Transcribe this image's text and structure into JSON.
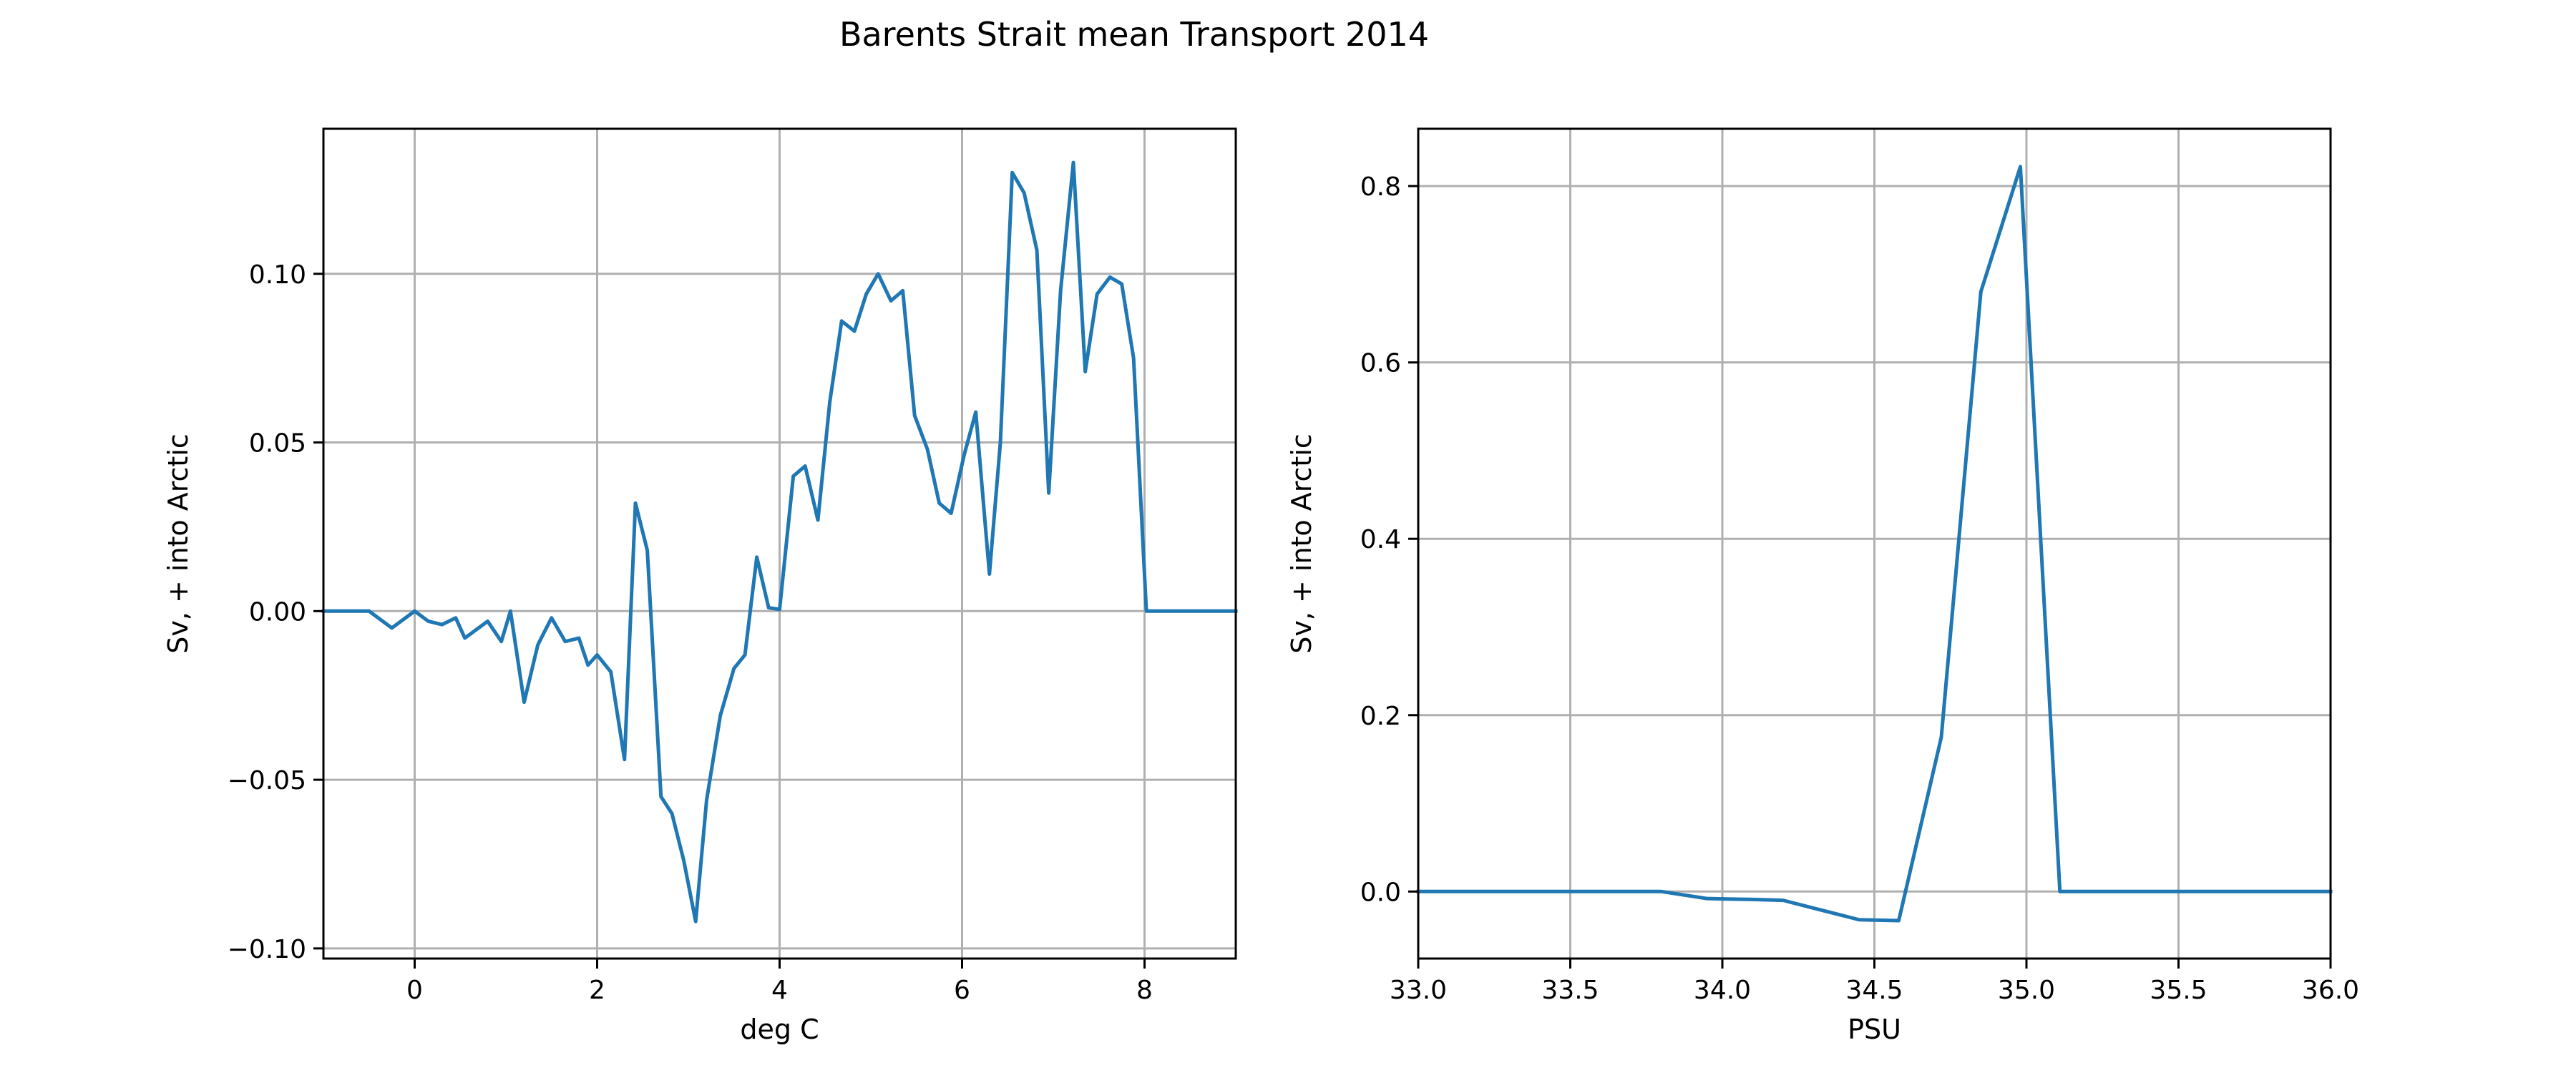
{
  "figure": {
    "title": "Barents Strait mean Transport 2014"
  },
  "colors": {
    "series": "#1f77b4",
    "grid": "#b0b0b0",
    "background": "#ffffff"
  },
  "chart_data": [
    {
      "type": "line",
      "title": "",
      "xlabel": "deg C",
      "ylabel": "Sv, + into Arctic",
      "xlim": [
        -1,
        9
      ],
      "ylim": [
        -0.103,
        0.143
      ],
      "xticks": [
        0,
        2,
        4,
        6,
        8
      ],
      "xtick_labels": [
        "0",
        "2",
        "4",
        "6",
        "8"
      ],
      "yticks": [
        -0.1,
        -0.05,
        0.0,
        0.05,
        0.1
      ],
      "ytick_labels": [
        "−0.10",
        "−0.05",
        "0.00",
        "0.05",
        "0.10"
      ],
      "grid": true,
      "series": [
        {
          "x": [
            -1.0,
            -0.8,
            -0.5,
            -0.25,
            0.0,
            0.15,
            0.3,
            0.45,
            0.55,
            0.7,
            0.8,
            0.95,
            1.05,
            1.2,
            1.35,
            1.5,
            1.65,
            1.8,
            1.9,
            2.0,
            2.15,
            2.3,
            2.42,
            2.55,
            2.7,
            2.82,
            2.95,
            3.08,
            3.2,
            3.35,
            3.5,
            3.62,
            3.75,
            3.88,
            4.0,
            4.15,
            4.28,
            4.42,
            4.55,
            4.68,
            4.82,
            4.95,
            5.08,
            5.22,
            5.35,
            5.48,
            5.62,
            5.75,
            5.88,
            6.02,
            6.15,
            6.3,
            6.42,
            6.55,
            6.68,
            6.82,
            6.95,
            7.08,
            7.22,
            7.35,
            7.48,
            7.62,
            7.75,
            7.88,
            8.02,
            8.5,
            9.0
          ],
          "y": [
            0.0,
            0.0,
            0.0,
            -0.005,
            0.0,
            -0.003,
            -0.004,
            -0.002,
            -0.008,
            -0.005,
            -0.003,
            -0.009,
            0.0,
            -0.027,
            -0.01,
            -0.002,
            -0.009,
            -0.008,
            -0.016,
            -0.013,
            -0.018,
            -0.044,
            0.032,
            0.018,
            -0.055,
            -0.06,
            -0.074,
            -0.092,
            -0.056,
            -0.031,
            -0.017,
            -0.013,
            0.016,
            0.001,
            0.0005,
            0.04,
            0.043,
            0.027,
            0.062,
            0.086,
            0.083,
            0.094,
            0.1,
            0.092,
            0.095,
            0.058,
            0.048,
            0.032,
            0.029,
            0.046,
            0.059,
            0.011,
            0.05,
            0.13,
            0.124,
            0.107,
            0.035,
            0.095,
            0.133,
            0.071,
            0.094,
            0.099,
            0.097,
            0.075,
            0.0,
            0.0,
            0.0
          ]
        }
      ]
    },
    {
      "type": "line",
      "title": "",
      "xlabel": "PSU",
      "ylabel": "Sv, + into Arctic",
      "xlim": [
        33.0,
        36.0
      ],
      "ylim": [
        -0.076,
        0.865
      ],
      "xticks": [
        33.0,
        33.5,
        34.0,
        34.5,
        35.0,
        35.5,
        36.0
      ],
      "xtick_labels": [
        "33.0",
        "33.5",
        "34.0",
        "34.5",
        "35.0",
        "35.5",
        "36.0"
      ],
      "yticks": [
        0.0,
        0.2,
        0.4,
        0.6,
        0.8
      ],
      "ytick_labels": [
        "0.0",
        "0.2",
        "0.4",
        "0.6",
        "0.8"
      ],
      "grid": true,
      "series": [
        {
          "x": [
            33.0,
            33.35,
            33.6,
            33.8,
            33.95,
            34.1,
            34.2,
            34.45,
            34.58,
            34.72,
            34.85,
            34.98,
            35.11,
            35.5,
            36.0
          ],
          "y": [
            0.0,
            0.0,
            0.0,
            0.0,
            -0.008,
            -0.009,
            -0.01,
            -0.032,
            -0.033,
            0.175,
            0.68,
            0.822,
            0.0,
            0.0,
            0.0
          ]
        }
      ]
    }
  ]
}
